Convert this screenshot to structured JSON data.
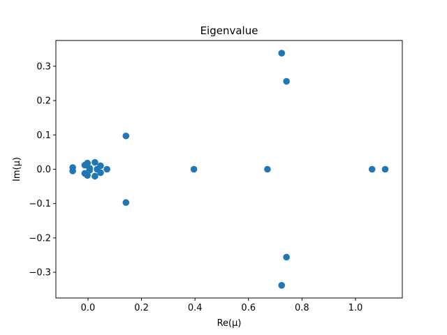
{
  "chart_data": {
    "type": "scatter",
    "title": "Eigenvalue",
    "xlabel": "Re(μ)",
    "ylabel": "Im(μ)",
    "xlim": [
      -0.12,
      1.175
    ],
    "ylim": [
      -0.375,
      0.375
    ],
    "grid": false,
    "xticks": [
      0.0,
      0.2,
      0.4,
      0.6,
      0.8,
      1.0
    ],
    "xtick_labels": [
      "0.0",
      "0.2",
      "0.4",
      "0.6",
      "0.8",
      "1.0"
    ],
    "yticks": [
      -0.3,
      -0.2,
      -0.1,
      0.0,
      0.1,
      0.2,
      0.3
    ],
    "ytick_labels": [
      "−0.3",
      "−0.2",
      "−0.1",
      "0.0",
      "0.1",
      "0.2",
      "0.3"
    ],
    "marker_color": "#1f77b4",
    "series": [
      {
        "points": [
          [
            0.724,
            0.338
          ],
          [
            0.724,
            -0.338
          ],
          [
            0.742,
            0.256
          ],
          [
            0.742,
            -0.256
          ],
          [
            0.142,
            0.097
          ],
          [
            0.142,
            -0.097
          ],
          [
            0.396,
            0.0
          ],
          [
            0.671,
            0.0
          ],
          [
            1.062,
            0.0
          ],
          [
            1.111,
            0.0
          ],
          [
            -0.057,
            0.005
          ],
          [
            -0.057,
            -0.005
          ],
          [
            -0.012,
            0.012
          ],
          [
            -0.012,
            -0.012
          ],
          [
            -0.002,
            0.018
          ],
          [
            -0.002,
            -0.018
          ],
          [
            0.006,
            0.003
          ],
          [
            0.006,
            -0.003
          ],
          [
            0.026,
            0.02
          ],
          [
            0.026,
            -0.02
          ],
          [
            0.034,
            0.0
          ],
          [
            0.047,
            0.01
          ],
          [
            0.047,
            -0.01
          ],
          [
            0.071,
            0.0
          ]
        ]
      }
    ]
  }
}
